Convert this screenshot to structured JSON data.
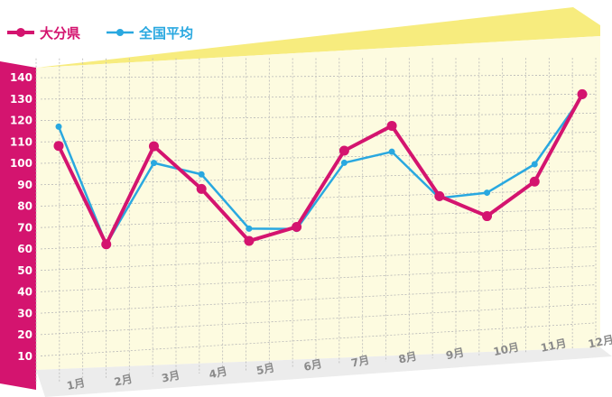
{
  "chart_data": {
    "type": "line",
    "categories": [
      "1月",
      "2月",
      "3月",
      "4月",
      "5月",
      "6月",
      "7月",
      "8月",
      "9月",
      "10月",
      "11月",
      "12月"
    ],
    "yticks": [
      "10",
      "20",
      "30",
      "40",
      "50",
      "60",
      "70",
      "80",
      "90",
      "100",
      "110",
      "120",
      "130",
      "140"
    ],
    "ylim": [
      0,
      145
    ],
    "grid": true,
    "legend_position": "top-left",
    "series": [
      {
        "name": "大分県",
        "color": "#d4146f",
        "values": [
          108,
          61,
          107,
          86,
          60,
          66,
          103,
          115,
          79,
          68,
          85,
          130
        ]
      },
      {
        "name": "全国平均",
        "color": "#29a8e0",
        "values": [
          117,
          61,
          99,
          93,
          66,
          65,
          97,
          102,
          78,
          80,
          94,
          129
        ]
      }
    ],
    "colors": {
      "axis_band": "#d4146f",
      "top_band": "#f7ec7e",
      "plot_bg": "#fdfbe0",
      "grid": "#b8b8b8"
    }
  }
}
